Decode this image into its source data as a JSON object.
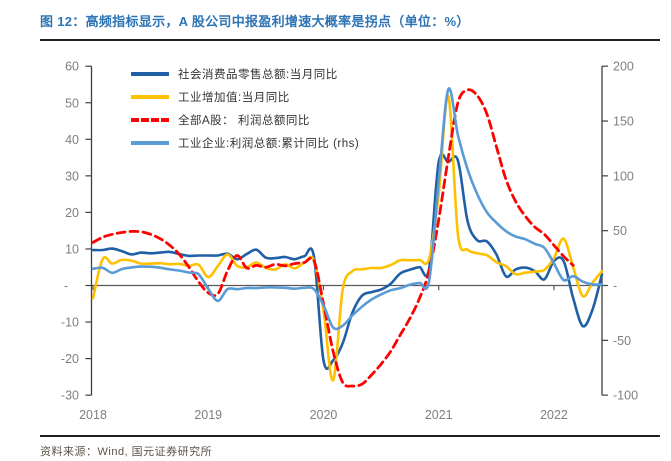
{
  "figure": {
    "title": "图 12：高频指标显示，A 股公司中报盈利增速大概率是拐点（单位：%）",
    "source": "资料来源：Wind, 国元证券研究所"
  },
  "colors": {
    "title_blue": "#2E74B5",
    "rule_dark": "#1f1f1f",
    "axis_line": "#3f3f3f",
    "zero_line": "#595959",
    "tick_label_gray": "#7f7f7f",
    "legend_text": "#333333",
    "series_dark_blue": "#1F5FA6",
    "series_gold": "#FFC000",
    "series_red": "#FF0000",
    "series_light_blue": "#5B9BD5"
  },
  "chart_data": {
    "type": "line",
    "title": "高频指标显示，A股公司中报盈利增速大概率是拐点",
    "unit": "%",
    "frequency": "monthly",
    "x_start": "2018-01",
    "x_end": "2022-06",
    "x_tick_labels": [
      "2018",
      "2019",
      "2020",
      "2021",
      "2022"
    ],
    "left_axis": {
      "min": -30,
      "max": 60,
      "step": 10,
      "tick_labels": [
        "60",
        "50",
        "40",
        "30",
        "20",
        "10",
        "-",
        "-10",
        "-20",
        "-30"
      ]
    },
    "right_axis": {
      "min": -100,
      "max": 200,
      "step": 50,
      "tick_labels": [
        "200",
        "150",
        "100",
        "50",
        "-",
        "-50",
        "-100"
      ]
    },
    "grid": "zero-line-only",
    "legend_position": "top-left",
    "series": [
      {
        "name": "社会消费品零售总额:当月同比",
        "axis": "left",
        "color": "#1F5FA6",
        "style": "solid",
        "values": [
          9.7,
          9.7,
          10.1,
          9.4,
          8.5,
          9.0,
          8.8,
          9.0,
          9.2,
          8.6,
          8.1,
          8.2,
          8.2,
          8.2,
          8.7,
          7.2,
          8.6,
          9.8,
          7.6,
          7.5,
          7.8,
          7.2,
          8.0,
          8.0,
          -20.5,
          -20.5,
          -15.8,
          -7.5,
          -2.8,
          -1.8,
          -1.1,
          0.5,
          3.3,
          4.3,
          5.0,
          4.6,
          33.8,
          33.8,
          34.2,
          17.7,
          12.4,
          12.1,
          8.5,
          2.5,
          4.4,
          4.9,
          3.9,
          1.7,
          6.7,
          6.7,
          -3.5,
          -11.1,
          -6.7,
          3.1
        ]
      },
      {
        "name": "工业增加值:当月同比",
        "axis": "left",
        "color": "#FFC000",
        "style": "solid",
        "values": [
          -3.5,
          7.2,
          6.0,
          7.0,
          6.8,
          6.0,
          6.0,
          6.1,
          5.8,
          5.9,
          5.4,
          5.7,
          2.3,
          5.3,
          8.5,
          5.4,
          5.0,
          6.3,
          4.8,
          4.4,
          5.8,
          4.7,
          6.2,
          6.9,
          -7.0,
          -25.9,
          -1.1,
          3.9,
          4.4,
          4.8,
          4.8,
          5.6,
          6.9,
          6.9,
          7.0,
          7.3,
          25.0,
          51.9,
          14.1,
          9.8,
          8.8,
          8.3,
          6.4,
          5.3,
          3.1,
          3.5,
          3.8,
          4.3,
          7.5,
          12.8,
          5.0,
          -2.9,
          0.7,
          3.9
        ]
      },
      {
        "name": "全部A股： 利润总额同比",
        "axis": "left",
        "color": "#FF0000",
        "style": "dashed",
        "values": [
          11.8,
          13.2,
          14.0,
          14.5,
          14.8,
          14.7,
          14.0,
          12.8,
          11.0,
          8.5,
          5.0,
          1.0,
          -2.0,
          -2.3,
          4.0,
          8.2,
          4.8,
          5.5,
          5.0,
          5.8,
          5.4,
          6.0,
          6.3,
          6.8,
          -5.0,
          -18.0,
          -26.5,
          -27.5,
          -27.0,
          -24.5,
          -21.5,
          -18.0,
          -13.5,
          -9.0,
          -3.5,
          4.0,
          18.0,
          35.0,
          50.0,
          53.5,
          52.0,
          47.0,
          38.0,
          29.0,
          23.0,
          19.0,
          16.0,
          14.0,
          11.0,
          8.0,
          5.5,
          null,
          null,
          null
        ]
      },
      {
        "name": "工业企业:利润总额:累计同比 (rhs)",
        "axis": "right",
        "color": "#5B9BD5",
        "style": "solid",
        "values": [
          15.2,
          16.1,
          11.6,
          15.0,
          16.5,
          17.2,
          17.1,
          16.2,
          14.7,
          13.6,
          11.8,
          10.3,
          -3.0,
          -14.0,
          -3.3,
          -3.4,
          -2.3,
          -2.4,
          -1.7,
          -1.7,
          -2.1,
          -2.9,
          -2.1,
          -3.3,
          -18.0,
          -38.3,
          -36.7,
          -27.4,
          -19.3,
          -12.8,
          -8.1,
          -4.4,
          -2.4,
          0.7,
          2.4,
          4.1,
          95.0,
          178.9,
          137.3,
          106.1,
          83.4,
          66.9,
          57.3,
          49.5,
          44.7,
          42.2,
          38.0,
          34.3,
          20.0,
          5.0,
          8.5,
          3.5,
          1.0,
          1.0
        ]
      }
    ]
  }
}
